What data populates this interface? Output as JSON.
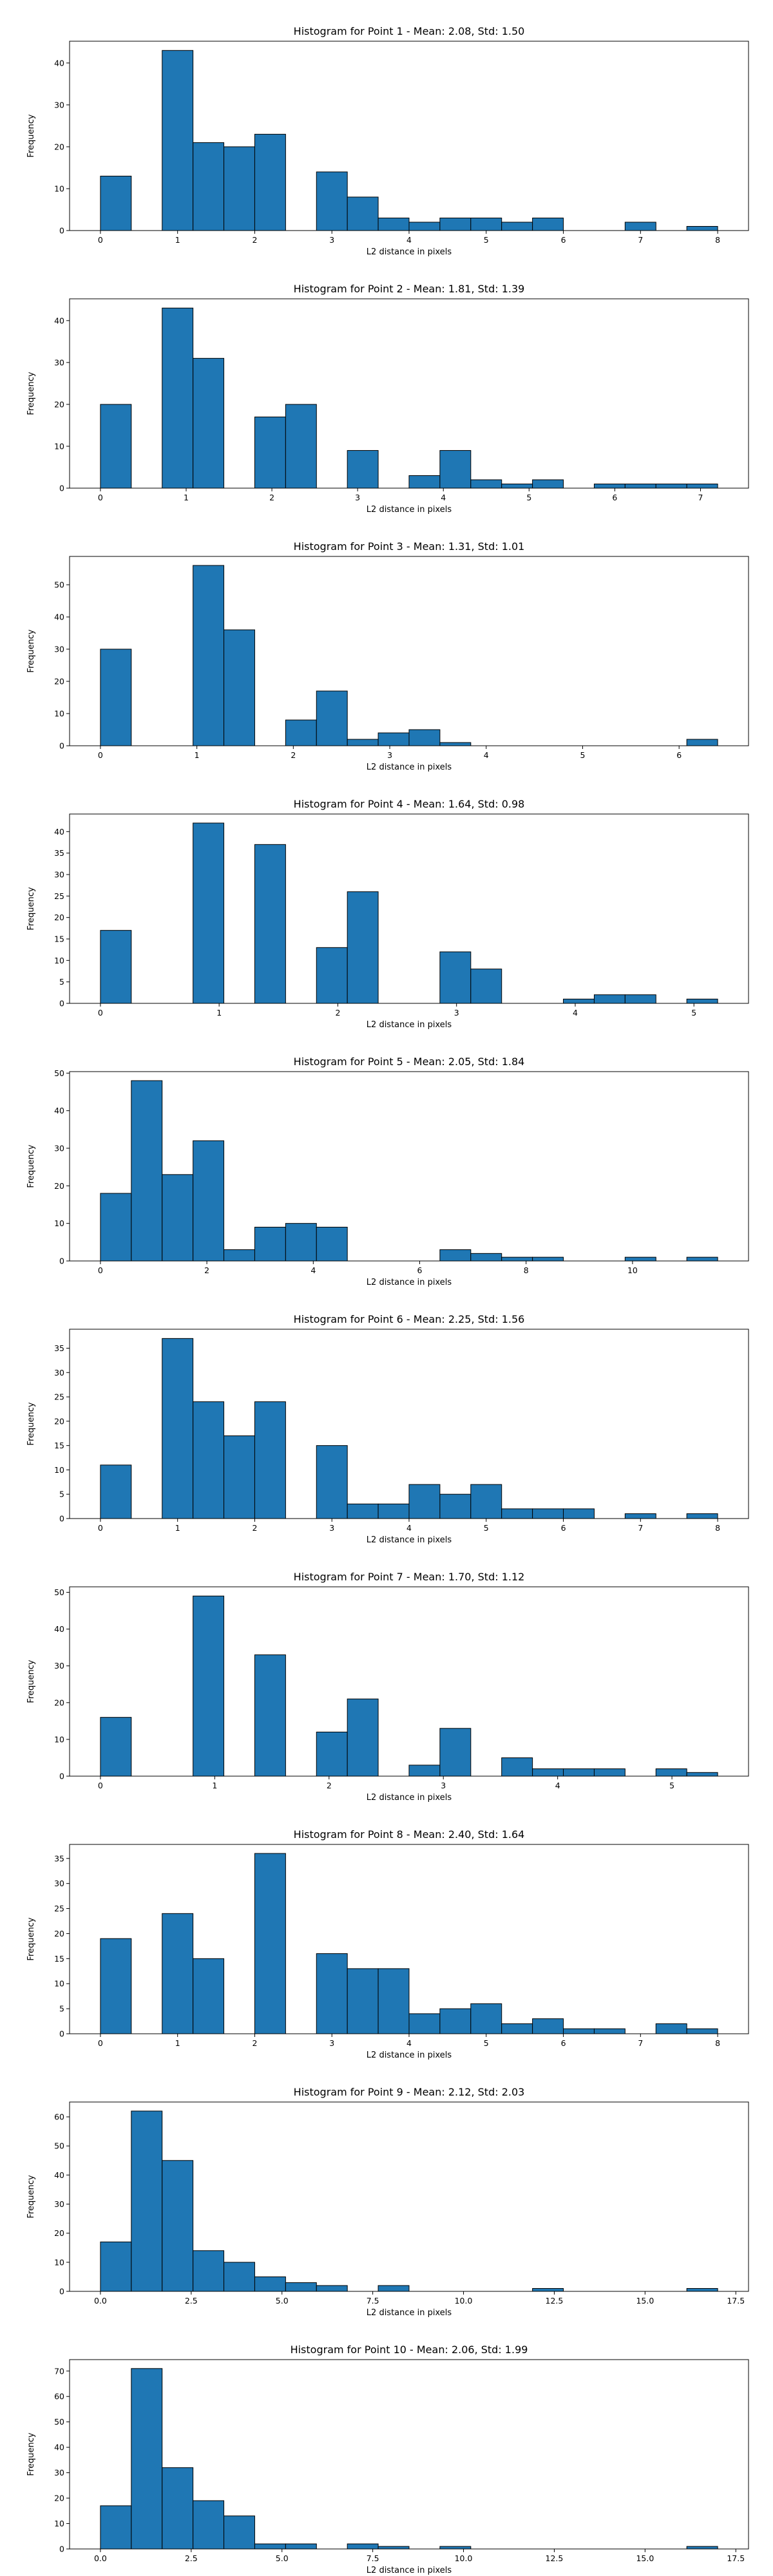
{
  "bar_color": "#1f77b4",
  "chart_data": [
    {
      "type": "bar",
      "title": "Histogram for Point 1 - Mean: 2.08, Std: 1.50",
      "xlabel": "L2 distance in pixels",
      "ylabel": "Frequency",
      "xlim": [
        -0.4,
        8.4
      ],
      "ylim": [
        0,
        45.2
      ],
      "xticks": [
        0,
        1,
        2,
        3,
        4,
        5,
        6,
        7,
        8
      ],
      "yticks": [
        0,
        10,
        20,
        30,
        40
      ],
      "bin_edges": [
        0,
        0.4,
        0.8,
        1.2,
        1.6,
        2.0,
        2.4,
        2.8,
        3.2,
        3.6,
        4.0,
        4.4,
        4.8,
        5.2,
        5.6,
        6.0,
        6.4,
        6.8,
        7.2,
        7.6,
        8.0
      ],
      "values": [
        13,
        0,
        43,
        21,
        20,
        23,
        0,
        14,
        8,
        3,
        2,
        3,
        3,
        2,
        3,
        0,
        0,
        2,
        0,
        1
      ]
    },
    {
      "type": "bar",
      "title": "Histogram for Point 2 - Mean: 1.81, Std: 1.39",
      "xlabel": "L2 distance in pixels",
      "ylabel": "Frequency",
      "xlim": [
        -0.36,
        7.56
      ],
      "ylim": [
        0,
        45.2
      ],
      "xticks": [
        0,
        1,
        2,
        3,
        4,
        5,
        6,
        7
      ],
      "yticks": [
        0,
        10,
        20,
        30,
        40
      ],
      "bin_edges": [
        0,
        0.36,
        0.72,
        1.08,
        1.44,
        1.8,
        2.16,
        2.52,
        2.88,
        3.24,
        3.6,
        3.96,
        4.32,
        4.68,
        5.04,
        5.4,
        5.76,
        6.12,
        6.48,
        6.84,
        7.2
      ],
      "values": [
        20,
        0,
        43,
        31,
        0,
        17,
        20,
        0,
        9,
        0,
        3,
        9,
        2,
        1,
        2,
        0,
        1,
        1,
        1,
        1
      ]
    },
    {
      "type": "bar",
      "title": "Histogram for Point 3 - Mean: 1.31, Std: 1.01",
      "xlabel": "L2 distance in pixels",
      "ylabel": "Frequency",
      "xlim": [
        -0.32,
        6.72
      ],
      "ylim": [
        0,
        58.8
      ],
      "xticks": [
        0,
        1,
        2,
        3,
        4,
        5,
        6
      ],
      "yticks": [
        0,
        10,
        20,
        30,
        40,
        50
      ],
      "bin_edges": [
        0,
        0.32,
        0.64,
        0.96,
        1.28,
        1.6,
        1.92,
        2.24,
        2.56,
        2.88,
        3.2,
        3.52,
        3.84,
        4.16,
        4.48,
        4.8,
        5.12,
        5.44,
        5.76,
        6.08,
        6.4
      ],
      "values": [
        30,
        0,
        0,
        56,
        36,
        0,
        8,
        17,
        2,
        4,
        5,
        1,
        0,
        0,
        0,
        0,
        0,
        0,
        0,
        2
      ]
    },
    {
      "type": "bar",
      "title": "Histogram for Point 4 - Mean: 1.64, Std: 0.98",
      "xlabel": "L2 distance in pixels",
      "ylabel": "Frequency",
      "xlim": [
        -0.26,
        5.46
      ],
      "ylim": [
        0,
        44.1
      ],
      "xticks": [
        0,
        1,
        2,
        3,
        4,
        5
      ],
      "yticks": [
        0,
        5,
        10,
        15,
        20,
        25,
        30,
        35,
        40
      ],
      "bin_edges": [
        0,
        0.26,
        0.52,
        0.78,
        1.04,
        1.3,
        1.56,
        1.82,
        2.08,
        2.34,
        2.6,
        2.86,
        3.12,
        3.38,
        3.64,
        3.9,
        4.16,
        4.42,
        4.68,
        4.94,
        5.2
      ],
      "values": [
        17,
        0,
        0,
        42,
        0,
        37,
        0,
        13,
        26,
        0,
        0,
        12,
        8,
        0,
        0,
        1,
        2,
        2,
        0,
        1
      ]
    },
    {
      "type": "bar",
      "title": "Histogram for Point 5 - Mean: 2.05, Std: 1.84",
      "xlabel": "L2 distance in pixels",
      "ylabel": "Frequency",
      "xlim": [
        -0.58,
        12.18
      ],
      "ylim": [
        0,
        50.4
      ],
      "xticks": [
        0,
        2,
        4,
        6,
        8,
        10
      ],
      "yticks": [
        0,
        10,
        20,
        30,
        40,
        50
      ],
      "bin_edges": [
        0,
        0.58,
        1.16,
        1.74,
        2.32,
        2.9,
        3.48,
        4.06,
        4.64,
        5.22,
        5.8,
        6.38,
        6.96,
        7.54,
        8.12,
        8.7,
        9.28,
        9.86,
        10.44,
        11.02,
        11.6
      ],
      "values": [
        18,
        48,
        23,
        32,
        3,
        9,
        10,
        9,
        0,
        0,
        0,
        3,
        2,
        1,
        1,
        0,
        0,
        1,
        0,
        1
      ]
    },
    {
      "type": "bar",
      "title": "Histogram for Point 6 - Mean: 2.25, Std: 1.56",
      "xlabel": "L2 distance in pixels",
      "ylabel": "Frequency",
      "xlim": [
        -0.4,
        8.4
      ],
      "ylim": [
        0,
        38.9
      ],
      "xticks": [
        0,
        1,
        2,
        3,
        4,
        5,
        6,
        7,
        8
      ],
      "yticks": [
        0,
        5,
        10,
        15,
        20,
        25,
        30,
        35
      ],
      "bin_edges": [
        0,
        0.4,
        0.8,
        1.2,
        1.6,
        2.0,
        2.4,
        2.8,
        3.2,
        3.6,
        4.0,
        4.4,
        4.8,
        5.2,
        5.6,
        6.0,
        6.4,
        6.8,
        7.2,
        7.6,
        8.0
      ],
      "values": [
        11,
        0,
        37,
        24,
        17,
        24,
        0,
        15,
        3,
        3,
        7,
        5,
        7,
        2,
        2,
        2,
        0,
        1,
        0,
        1
      ]
    },
    {
      "type": "bar",
      "title": "Histogram for Point 7 - Mean: 1.70, Std: 1.12",
      "xlabel": "L2 distance in pixels",
      "ylabel": "Frequency",
      "xlim": [
        -0.27,
        5.67
      ],
      "ylim": [
        0,
        51.5
      ],
      "xticks": [
        0,
        1,
        2,
        3,
        4,
        5
      ],
      "yticks": [
        0,
        10,
        20,
        30,
        40,
        50
      ],
      "bin_edges": [
        0,
        0.27,
        0.54,
        0.81,
        1.08,
        1.35,
        1.62,
        1.89,
        2.16,
        2.43,
        2.7,
        2.97,
        3.24,
        3.51,
        3.78,
        4.05,
        4.32,
        4.59,
        4.86,
        5.13,
        5.4
      ],
      "values": [
        16,
        0,
        0,
        49,
        0,
        33,
        0,
        12,
        21,
        0,
        3,
        13,
        0,
        5,
        2,
        2,
        2,
        0,
        2,
        1
      ]
    },
    {
      "type": "bar",
      "title": "Histogram for Point 8 - Mean: 2.40, Std: 1.64",
      "xlabel": "L2 distance in pixels",
      "ylabel": "Frequency",
      "xlim": [
        -0.4,
        8.4
      ],
      "ylim": [
        0,
        37.8
      ],
      "xticks": [
        0,
        1,
        2,
        3,
        4,
        5,
        6,
        7,
        8
      ],
      "yticks": [
        0,
        5,
        10,
        15,
        20,
        25,
        30,
        35
      ],
      "bin_edges": [
        0,
        0.4,
        0.8,
        1.2,
        1.6,
        2.0,
        2.4,
        2.8,
        3.2,
        3.6,
        4.0,
        4.4,
        4.8,
        5.2,
        5.6,
        6.0,
        6.4,
        6.8,
        7.2,
        7.6,
        8.0
      ],
      "values": [
        19,
        0,
        24,
        15,
        0,
        36,
        0,
        16,
        13,
        13,
        4,
        5,
        6,
        2,
        3,
        1,
        1,
        0,
        2,
        1
      ]
    },
    {
      "type": "bar",
      "title": "Histogram for Point 9 - Mean: 2.12, Std: 2.03",
      "xlabel": "L2 distance in pixels",
      "ylabel": "Frequency",
      "xlim": [
        -0.85,
        17.85
      ],
      "ylim": [
        0,
        65.1
      ],
      "xticks": [
        0.0,
        2.5,
        5.0,
        7.5,
        10.0,
        12.5,
        15.0,
        17.5
      ],
      "xtick_labels": [
        "0.0",
        "2.5",
        "5.0",
        "7.5",
        "10.0",
        "12.5",
        "15.0",
        "17.5"
      ],
      "yticks": [
        0,
        10,
        20,
        30,
        40,
        50,
        60
      ],
      "bin_edges": [
        0,
        0.85,
        1.7,
        2.55,
        3.4,
        4.25,
        5.1,
        5.95,
        6.8,
        7.65,
        8.5,
        9.35,
        10.2,
        11.05,
        11.9,
        12.75,
        13.6,
        14.45,
        15.3,
        16.15,
        17.0
      ],
      "values": [
        17,
        62,
        45,
        14,
        10,
        5,
        3,
        2,
        0,
        2,
        0,
        0,
        0,
        0,
        1,
        0,
        0,
        0,
        0,
        1
      ]
    },
    {
      "type": "bar",
      "title": "Histogram for Point 10 - Mean: 2.06, Std: 1.99",
      "xlabel": "L2 distance in pixels",
      "ylabel": "Frequency",
      "xlim": [
        -0.85,
        17.85
      ],
      "ylim": [
        0,
        74.5
      ],
      "xticks": [
        0.0,
        2.5,
        5.0,
        7.5,
        10.0,
        12.5,
        15.0,
        17.5
      ],
      "xtick_labels": [
        "0.0",
        "2.5",
        "5.0",
        "7.5",
        "10.0",
        "12.5",
        "15.0",
        "17.5"
      ],
      "yticks": [
        0,
        10,
        20,
        30,
        40,
        50,
        60,
        70
      ],
      "bin_edges": [
        0,
        0.85,
        1.7,
        2.55,
        3.4,
        4.25,
        5.1,
        5.95,
        6.8,
        7.65,
        8.5,
        9.35,
        10.2,
        11.05,
        11.9,
        12.75,
        13.6,
        14.45,
        15.3,
        16.15,
        17.0
      ],
      "values": [
        17,
        71,
        32,
        19,
        13,
        2,
        2,
        0,
        2,
        1,
        0,
        1,
        0,
        0,
        0,
        0,
        0,
        0,
        0,
        1
      ]
    }
  ]
}
